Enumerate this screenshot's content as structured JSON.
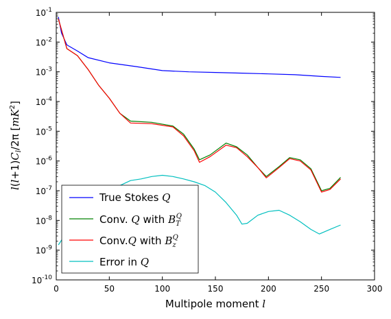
{
  "chart_data": {
    "type": "line",
    "xlabel": "Multipole moment l",
    "ylabel": "l(l+1)C_l/2π [mK^2]",
    "xlim": [
      0,
      300
    ],
    "ylim_log10": [
      -10,
      -1
    ],
    "yscale": "log",
    "x_ticks": [
      "0",
      "50",
      "100",
      "150",
      "200",
      "250",
      "300"
    ],
    "y_ticks": [
      "10^-10",
      "10^-9",
      "10^-8",
      "10^-7",
      "10^-6",
      "10^-5",
      "10^-4",
      "10^-3",
      "10^-2",
      "10^-1"
    ],
    "legend_position": "lower-left",
    "series": [
      {
        "name": "True Stokes Q",
        "color": "#0000ff",
        "points": [
          [
            2,
            0.07
          ],
          [
            5,
            0.02
          ],
          [
            10,
            0.008
          ],
          [
            20,
            0.005
          ],
          [
            30,
            0.003
          ],
          [
            50,
            0.002
          ],
          [
            75,
            0.0015
          ],
          [
            100,
            0.0011
          ],
          [
            125,
            0.001
          ],
          [
            150,
            0.00095
          ],
          [
            175,
            0.0009
          ],
          [
            200,
            0.00085
          ],
          [
            225,
            0.0008
          ],
          [
            250,
            0.0007
          ],
          [
            268,
            0.00065
          ]
        ]
      },
      {
        "name": "Conv. Q with B_T^Q",
        "color": "#008000",
        "points": [
          [
            2,
            0.06
          ],
          [
            10,
            0.006
          ],
          [
            20,
            0.0035
          ],
          [
            30,
            0.0012
          ],
          [
            40,
            0.00035
          ],
          [
            50,
            0.00013
          ],
          [
            60,
            4e-05
          ],
          [
            70,
            2.2e-05
          ],
          [
            90,
            2e-05
          ],
          [
            110,
            1.5e-05
          ],
          [
            120,
            8e-06
          ],
          [
            130,
            2.5e-06
          ],
          [
            135,
            1.1e-06
          ],
          [
            145,
            1.6e-06
          ],
          [
            160,
            4e-06
          ],
          [
            170,
            3e-06
          ],
          [
            180,
            1.6e-06
          ],
          [
            190,
            6e-07
          ],
          [
            198,
            3e-07
          ],
          [
            210,
            6.5e-07
          ],
          [
            220,
            1.3e-06
          ],
          [
            230,
            1.1e-06
          ],
          [
            240,
            5.5e-07
          ],
          [
            250,
            1e-07
          ],
          [
            258,
            1.2e-07
          ],
          [
            268,
            2.8e-07
          ]
        ]
      },
      {
        "name": "Conv.Q with B_z^Q",
        "color": "#ff0000",
        "points": [
          [
            2,
            0.06
          ],
          [
            10,
            0.006
          ],
          [
            20,
            0.0035
          ],
          [
            30,
            0.0012
          ],
          [
            40,
            0.00035
          ],
          [
            50,
            0.00013
          ],
          [
            60,
            4e-05
          ],
          [
            70,
            1.9e-05
          ],
          [
            90,
            1.8e-05
          ],
          [
            110,
            1.4e-05
          ],
          [
            120,
            7e-06
          ],
          [
            130,
            2.2e-06
          ],
          [
            135,
            9e-07
          ],
          [
            145,
            1.4e-06
          ],
          [
            160,
            3.4e-06
          ],
          [
            170,
            2.8e-06
          ],
          [
            180,
            1.4e-06
          ],
          [
            190,
            6e-07
          ],
          [
            198,
            2.7e-07
          ],
          [
            210,
            6e-07
          ],
          [
            220,
            1.2e-06
          ],
          [
            230,
            1e-06
          ],
          [
            240,
            5e-07
          ],
          [
            250,
            9e-08
          ],
          [
            258,
            1.1e-07
          ],
          [
            268,
            2.5e-07
          ]
        ]
      },
      {
        "name": "Error in Q",
        "color": "#00bfbf",
        "points": [
          [
            2,
            1.5e-09
          ],
          [
            10,
            4e-09
          ],
          [
            20,
            8e-09
          ],
          [
            30,
            2e-08
          ],
          [
            40,
            4e-08
          ],
          [
            50,
            8e-08
          ],
          [
            60,
            1.5e-07
          ],
          [
            70,
            2.2e-07
          ],
          [
            80,
            2.5e-07
          ],
          [
            90,
            3e-07
          ],
          [
            100,
            3.3e-07
          ],
          [
            110,
            3e-07
          ],
          [
            120,
            2.5e-07
          ],
          [
            130,
            2e-07
          ],
          [
            140,
            1.5e-07
          ],
          [
            150,
            9e-08
          ],
          [
            160,
            4e-08
          ],
          [
            170,
            1.5e-08
          ],
          [
            175,
            7.5e-09
          ],
          [
            180,
            8e-09
          ],
          [
            190,
            1.5e-08
          ],
          [
            200,
            2e-08
          ],
          [
            210,
            2.2e-08
          ],
          [
            220,
            1.5e-08
          ],
          [
            230,
            9e-09
          ],
          [
            240,
            5e-09
          ],
          [
            248,
            3.5e-09
          ],
          [
            258,
            5e-09
          ],
          [
            268,
            7e-09
          ]
        ]
      }
    ]
  }
}
